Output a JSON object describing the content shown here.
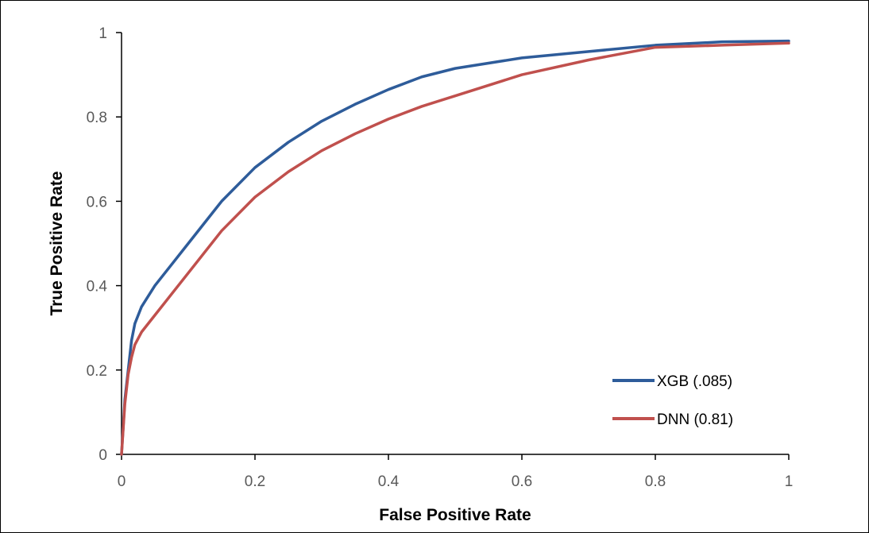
{
  "chart_data": {
    "type": "line",
    "xlabel": "False Positive Rate",
    "ylabel": "True Positive Rate",
    "xlim": [
      0,
      1
    ],
    "ylim": [
      0,
      1
    ],
    "x_ticks": [
      "0",
      "0.2",
      "0.4",
      "0.6",
      "0.8",
      "1"
    ],
    "y_ticks": [
      "0",
      "0.2",
      "0.4",
      "0.6",
      "0.8",
      "1"
    ],
    "grid": false,
    "legend_position": "bottom-right",
    "series": [
      {
        "name": "XGB (.085)",
        "color": "#2E5C9A",
        "points": [
          [
            0,
            0
          ],
          [
            0.005,
            0.13
          ],
          [
            0.01,
            0.2
          ],
          [
            0.015,
            0.27
          ],
          [
            0.02,
            0.31
          ],
          [
            0.03,
            0.35
          ],
          [
            0.05,
            0.4
          ],
          [
            0.075,
            0.45
          ],
          [
            0.1,
            0.5
          ],
          [
            0.15,
            0.6
          ],
          [
            0.2,
            0.68
          ],
          [
            0.25,
            0.74
          ],
          [
            0.3,
            0.79
          ],
          [
            0.35,
            0.83
          ],
          [
            0.4,
            0.865
          ],
          [
            0.45,
            0.895
          ],
          [
            0.5,
            0.915
          ],
          [
            0.6,
            0.94
          ],
          [
            0.7,
            0.955
          ],
          [
            0.8,
            0.97
          ],
          [
            0.9,
            0.978
          ],
          [
            1,
            0.98
          ]
        ]
      },
      {
        "name": "DNN (0.81)",
        "color": "#C0504D",
        "points": [
          [
            0,
            0
          ],
          [
            0.005,
            0.12
          ],
          [
            0.01,
            0.19
          ],
          [
            0.015,
            0.23
          ],
          [
            0.02,
            0.26
          ],
          [
            0.03,
            0.29
          ],
          [
            0.05,
            0.33
          ],
          [
            0.075,
            0.38
          ],
          [
            0.1,
            0.43
          ],
          [
            0.15,
            0.53
          ],
          [
            0.2,
            0.61
          ],
          [
            0.25,
            0.67
          ],
          [
            0.3,
            0.72
          ],
          [
            0.35,
            0.76
          ],
          [
            0.4,
            0.795
          ],
          [
            0.45,
            0.825
          ],
          [
            0.5,
            0.85
          ],
          [
            0.6,
            0.9
          ],
          [
            0.7,
            0.935
          ],
          [
            0.8,
            0.965
          ],
          [
            0.9,
            0.97
          ],
          [
            1,
            0.975
          ]
        ]
      }
    ]
  }
}
